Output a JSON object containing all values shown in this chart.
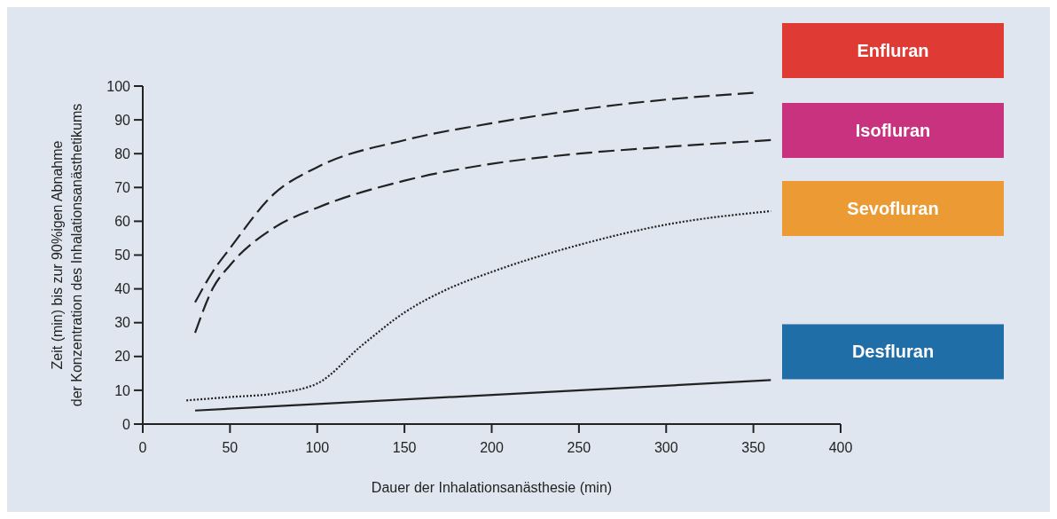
{
  "chart_data": {
    "type": "line",
    "xlabel": "Dauer der Inhalationsanästhesie (min)",
    "ylabel": "Zeit (min) bis zur 90%igen Abnahme der Konzentration des Inhalationsanästhetikums",
    "xlim": [
      0,
      400
    ],
    "xticks": [
      0,
      50,
      100,
      150,
      200,
      250,
      300,
      350,
      400
    ],
    "ylim": [
      0,
      100
    ],
    "yticks": [
      0,
      10,
      20,
      30,
      40,
      50,
      60,
      70,
      80,
      90,
      100
    ],
    "grid": false,
    "marker": "none",
    "series": [
      {
        "name": "Enfluran",
        "color": "#222222",
        "line_style": "dashed",
        "x": [
          30,
          40,
          50,
          75,
          100,
          150,
          200,
          250,
          300,
          350
        ],
        "values": [
          36,
          45,
          52,
          68,
          76,
          84,
          89,
          93,
          96,
          98
        ]
      },
      {
        "name": "Isofluran",
        "color": "#222222",
        "line_style": "dashed",
        "x": [
          30,
          40,
          50,
          75,
          100,
          150,
          200,
          250,
          300,
          360
        ],
        "values": [
          27,
          40,
          47,
          58,
          64,
          72,
          77,
          80,
          82,
          84
        ]
      },
      {
        "name": "Sevofluran",
        "color": "#222222",
        "line_style": "dotted",
        "x": [
          25,
          50,
          75,
          100,
          125,
          150,
          175,
          200,
          250,
          300,
          360
        ],
        "values": [
          7,
          8,
          9,
          12,
          23,
          33,
          40,
          45,
          53,
          59,
          63
        ]
      },
      {
        "name": "Desfluran",
        "color": "#222222",
        "line_style": "solid",
        "x": [
          30,
          360
        ],
        "values": [
          4,
          13
        ]
      }
    ]
  }
}
